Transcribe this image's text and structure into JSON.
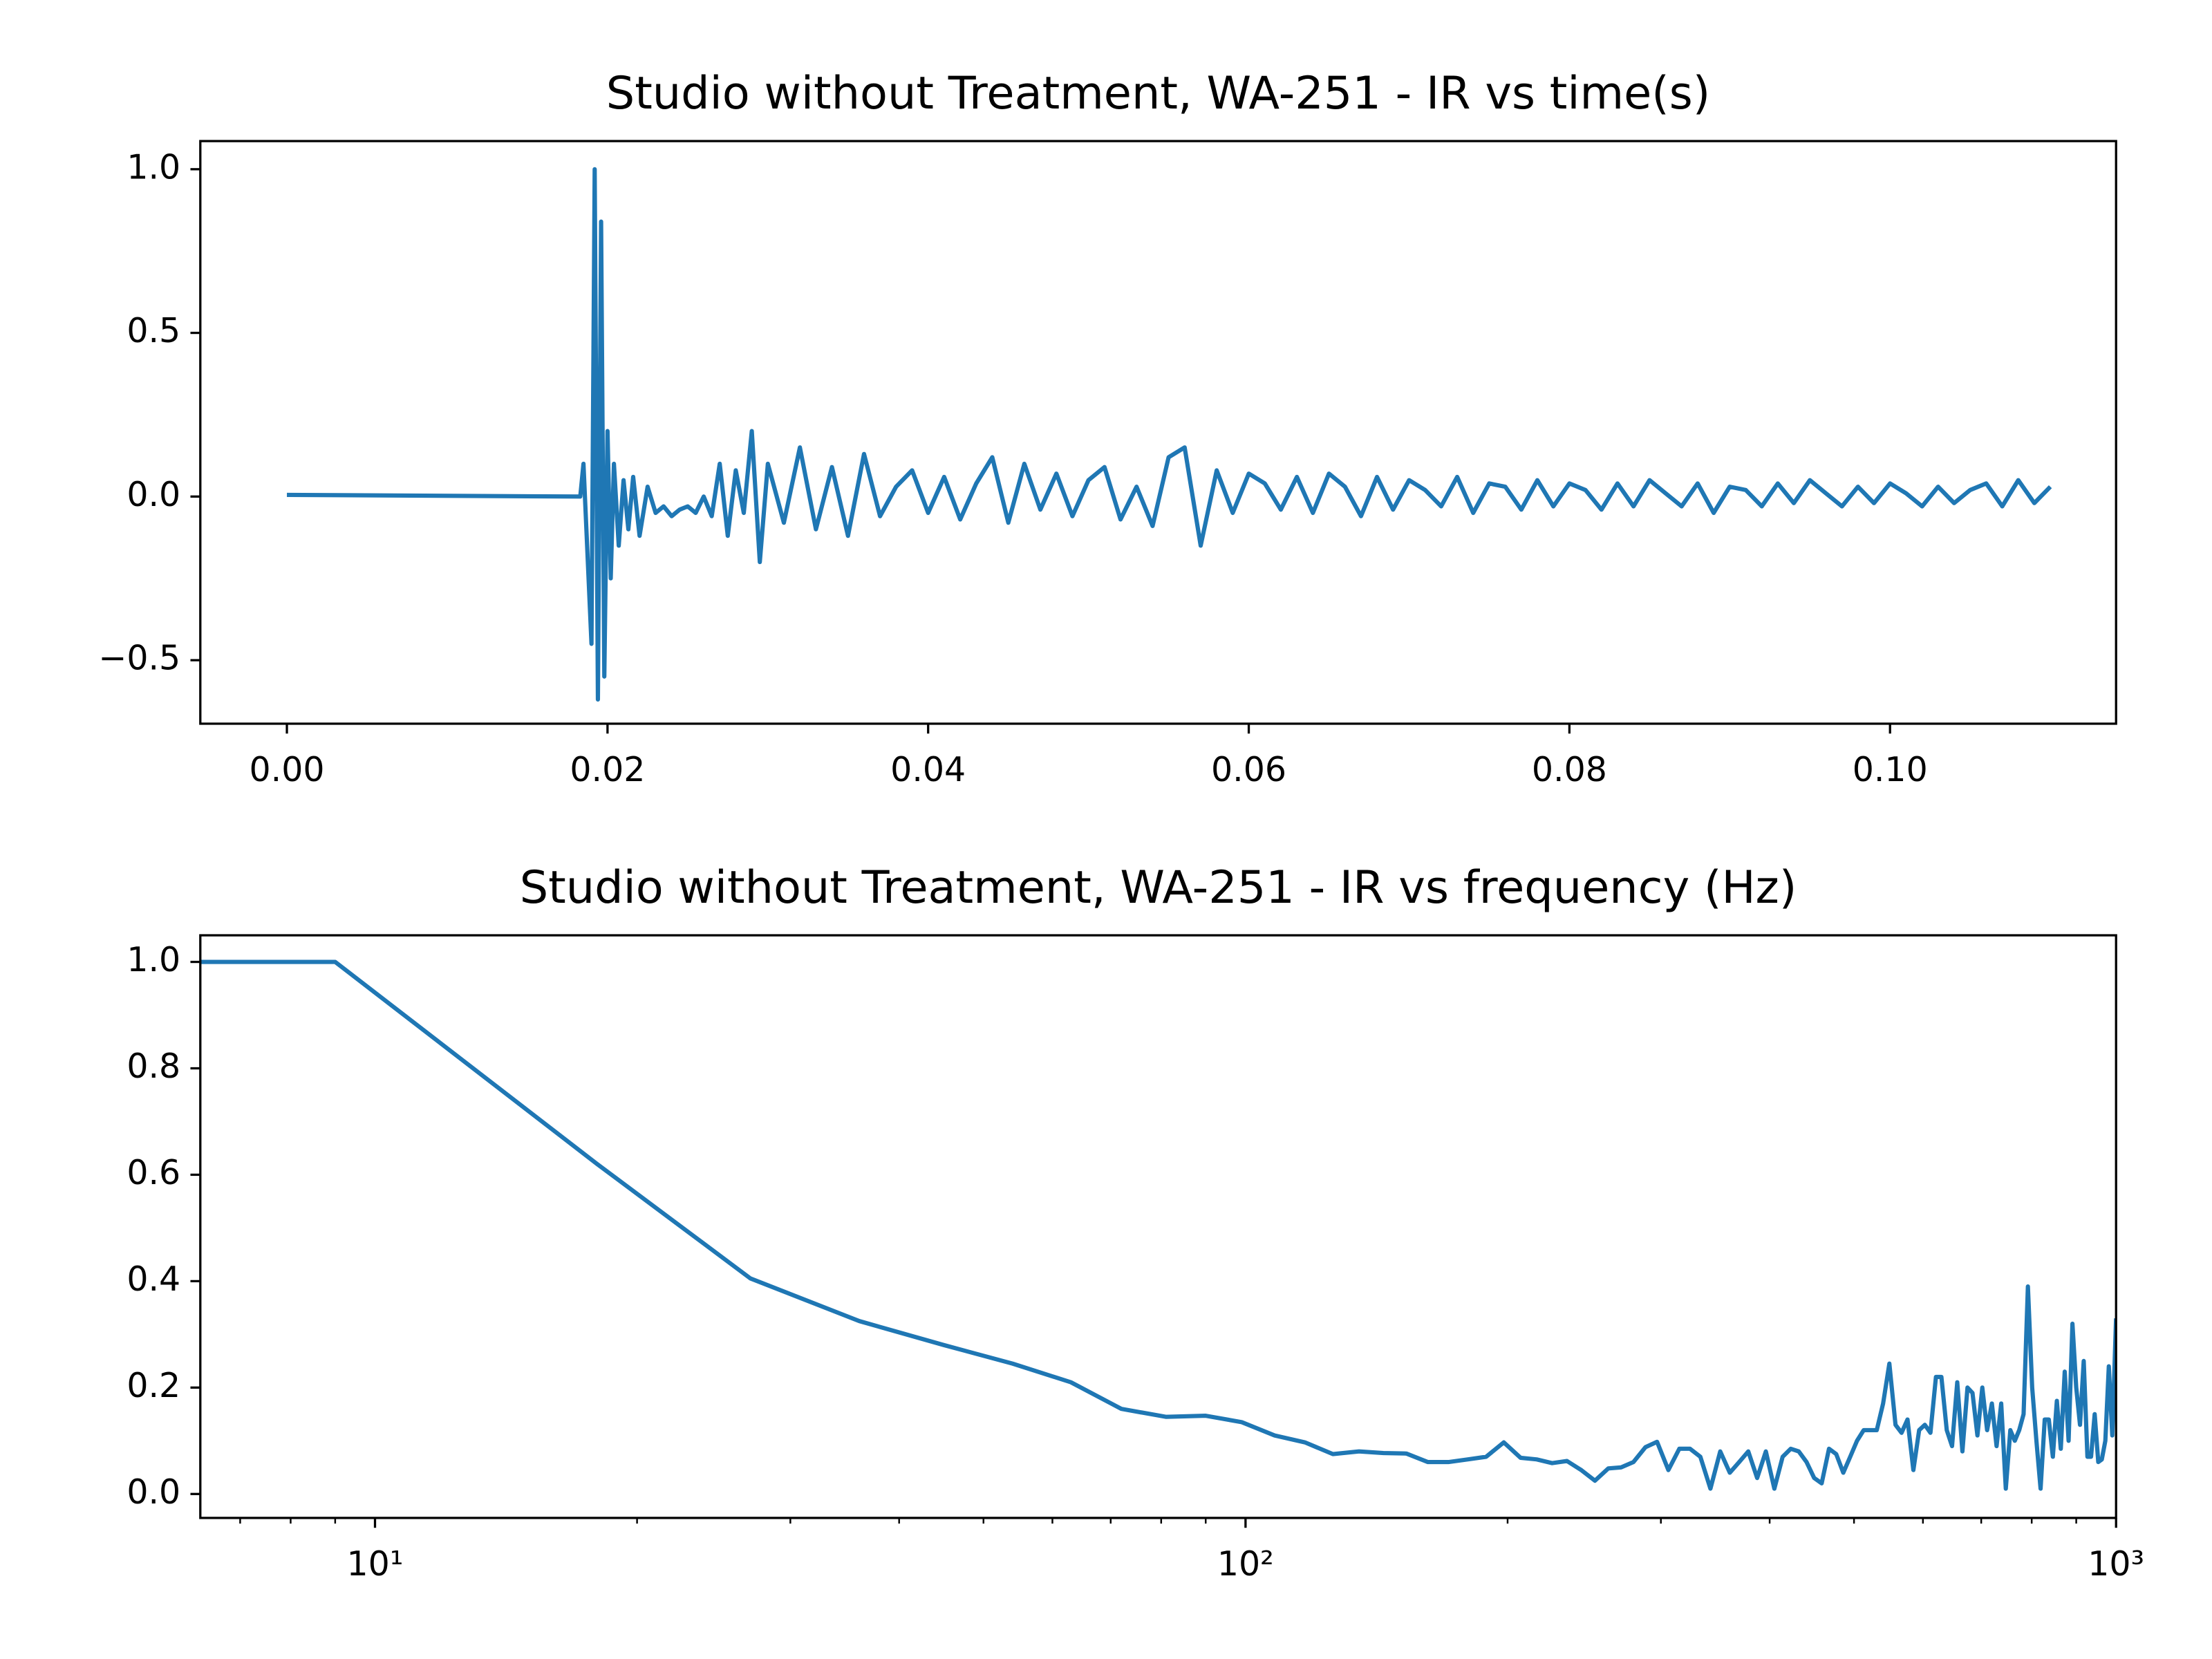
{
  "chart_data": [
    {
      "type": "line",
      "title": "Studio without Treatment, WA-251 - IR vs time(s)",
      "color": "#1f77b4",
      "x": [
        0,
        0.0183,
        0.0185,
        0.019,
        0.0192,
        0.0194,
        0.0196,
        0.0198,
        0.02,
        0.0202,
        0.0204,
        0.0207,
        0.021,
        0.0213,
        0.0216,
        0.022,
        0.0225,
        0.023,
        0.0235,
        0.024,
        0.0245,
        0.025,
        0.0255,
        0.026,
        0.0265,
        0.027,
        0.0275,
        0.028,
        0.0285,
        0.029,
        0.0295,
        0.03,
        0.031,
        0.032,
        0.033,
        0.034,
        0.035,
        0.036,
        0.037,
        0.038,
        0.039,
        0.04,
        0.041,
        0.042,
        0.043,
        0.044,
        0.045,
        0.046,
        0.047,
        0.048,
        0.049,
        0.05,
        0.051,
        0.052,
        0.053,
        0.054,
        0.055,
        0.056,
        0.057,
        0.058,
        0.059,
        0.06,
        0.061,
        0.062,
        0.063,
        0.064,
        0.065,
        0.066,
        0.067,
        0.068,
        0.069,
        0.07,
        0.071,
        0.072,
        0.073,
        0.074,
        0.075,
        0.076,
        0.077,
        0.078,
        0.079,
        0.08,
        0.081,
        0.082,
        0.083,
        0.084,
        0.085,
        0.086,
        0.087,
        0.088,
        0.089,
        0.09,
        0.091,
        0.092,
        0.093,
        0.094,
        0.095,
        0.096,
        0.097,
        0.098,
        0.099,
        0.1,
        0.101,
        0.102,
        0.103,
        0.104,
        0.105,
        0.106,
        0.107,
        0.108,
        0.109,
        0.11
      ],
      "values": [
        0.005,
        0.0,
        0.1,
        -0.45,
        1.0,
        -0.62,
        0.84,
        -0.55,
        0.2,
        -0.25,
        0.1,
        -0.15,
        0.05,
        -0.1,
        0.06,
        -0.12,
        0.03,
        -0.05,
        -0.03,
        -0.06,
        -0.04,
        -0.03,
        -0.05,
        0.0,
        -0.06,
        0.1,
        -0.12,
        0.08,
        -0.05,
        0.2,
        -0.2,
        0.1,
        -0.08,
        0.15,
        -0.1,
        0.09,
        -0.12,
        0.13,
        -0.06,
        0.03,
        0.08,
        -0.05,
        0.06,
        -0.07,
        0.04,
        0.12,
        -0.08,
        0.1,
        -0.04,
        0.07,
        -0.06,
        0.05,
        0.09,
        -0.07,
        0.03,
        -0.09,
        0.12,
        0.15,
        -0.15,
        0.08,
        -0.05,
        0.07,
        0.04,
        -0.04,
        0.06,
        -0.05,
        0.07,
        0.03,
        -0.06,
        0.06,
        -0.04,
        0.05,
        0.02,
        -0.03,
        0.06,
        -0.05,
        0.04,
        0.03,
        -0.04,
        0.05,
        -0.03,
        0.04,
        0.02,
        -0.04,
        0.04,
        -0.03,
        0.05,
        0.01,
        -0.03,
        0.04,
        -0.05,
        0.03,
        0.02,
        -0.03,
        0.04,
        -0.02,
        0.05,
        0.01,
        -0.03,
        0.03,
        -0.02,
        0.04,
        0.01,
        -0.03,
        0.03,
        -0.02,
        0.02,
        0.04,
        -0.03,
        0.05,
        -0.02,
        0.03
      ],
      "xlim": [
        -0.0054,
        0.1141
      ],
      "ylim": [
        -0.694,
        1.086
      ],
      "xticks": [
        {
          "value": 0,
          "label": "0.00"
        },
        {
          "value": 0.02,
          "label": "0.02"
        },
        {
          "value": 0.04,
          "label": "0.04"
        },
        {
          "value": 0.06,
          "label": "0.06"
        },
        {
          "value": 0.08,
          "label": "0.08"
        },
        {
          "value": 0.1,
          "label": "0.10"
        }
      ],
      "yticks": [
        {
          "value": -0.5,
          "label": "−0.5"
        },
        {
          "value": 0,
          "label": "0.0"
        },
        {
          "value": 0.5,
          "label": "0.5"
        },
        {
          "value": 1,
          "label": "1.0"
        }
      ]
    },
    {
      "type": "line",
      "title": "Studio without Treatment, WA-251 - IR vs frequency (Hz)",
      "color": "#1f77b4",
      "xscale": "log",
      "x": [
        6.3,
        9,
        18,
        27,
        36,
        45,
        54,
        63,
        72,
        81,
        90,
        99,
        108,
        117,
        126,
        135,
        144,
        153,
        162,
        171,
        180,
        189,
        198,
        207,
        216,
        225,
        234,
        243,
        252,
        261,
        270,
        279,
        288,
        297,
        306,
        315,
        324,
        333,
        342,
        351,
        360,
        369,
        378,
        387,
        396,
        405,
        414,
        423,
        432,
        441,
        450,
        459,
        468,
        477,
        486,
        495,
        504,
        513,
        522,
        531,
        540,
        549,
        558,
        567,
        576,
        585,
        594,
        603,
        612,
        621,
        630,
        639,
        648,
        657,
        666,
        675,
        684,
        693,
        702,
        711,
        720,
        729,
        738,
        747,
        756,
        765,
        774,
        783,
        792,
        801,
        810,
        819,
        828,
        837,
        846,
        855,
        864,
        873,
        882,
        891,
        900,
        909,
        918,
        927,
        936,
        945,
        954,
        963,
        972,
        981,
        990,
        1000
      ],
      "values": [
        1.0,
        1.0,
        0.62,
        0.405,
        0.325,
        0.28,
        0.245,
        0.21,
        0.16,
        0.145,
        0.147,
        0.135,
        0.11,
        0.097,
        0.075,
        0.08,
        0.077,
        0.076,
        0.06,
        0.06,
        0.065,
        0.07,
        0.097,
        0.068,
        0.065,
        0.058,
        0.062,
        0.045,
        0.025,
        0.048,
        0.05,
        0.06,
        0.088,
        0.098,
        0.045,
        0.085,
        0.085,
        0.07,
        0.01,
        0.08,
        0.04,
        0.06,
        0.08,
        0.03,
        0.08,
        0.01,
        0.07,
        0.085,
        0.08,
        0.06,
        0.03,
        0.02,
        0.085,
        0.075,
        0.04,
        0.07,
        0.1,
        0.12,
        0.12,
        0.12,
        0.17,
        0.245,
        0.13,
        0.115,
        0.14,
        0.045,
        0.12,
        0.13,
        0.115,
        0.22,
        0.22,
        0.12,
        0.09,
        0.21,
        0.08,
        0.2,
        0.19,
        0.11,
        0.2,
        0.12,
        0.17,
        0.09,
        0.17,
        0.01,
        0.12,
        0.1,
        0.12,
        0.15,
        0.39,
        0.2,
        0.1,
        0.01,
        0.14,
        0.14,
        0.07,
        0.175,
        0.085,
        0.23,
        0.1,
        0.32,
        0.2,
        0.13,
        0.25,
        0.07,
        0.07,
        0.15,
        0.06,
        0.065,
        0.1,
        0.24,
        0.11,
        0.33
      ],
      "xlim": [
        6.3,
        1000
      ],
      "ylim": [
        -0.045,
        1.05
      ],
      "xticks": [
        {
          "value": 10,
          "label": "10¹"
        },
        {
          "value": 100,
          "label": "10²"
        },
        {
          "value": 1000,
          "label": "10³"
        }
      ],
      "xticks_minor": [
        7,
        8,
        9,
        20,
        30,
        40,
        50,
        60,
        70,
        80,
        90,
        200,
        300,
        400,
        500,
        600,
        700,
        800,
        900
      ],
      "yticks": [
        {
          "value": 0,
          "label": "0.0"
        },
        {
          "value": 0.2,
          "label": "0.2"
        },
        {
          "value": 0.4,
          "label": "0.4"
        },
        {
          "value": 0.6,
          "label": "0.6"
        },
        {
          "value": 0.8,
          "label": "0.8"
        },
        {
          "value": 1,
          "label": "1.0"
        }
      ]
    }
  ]
}
